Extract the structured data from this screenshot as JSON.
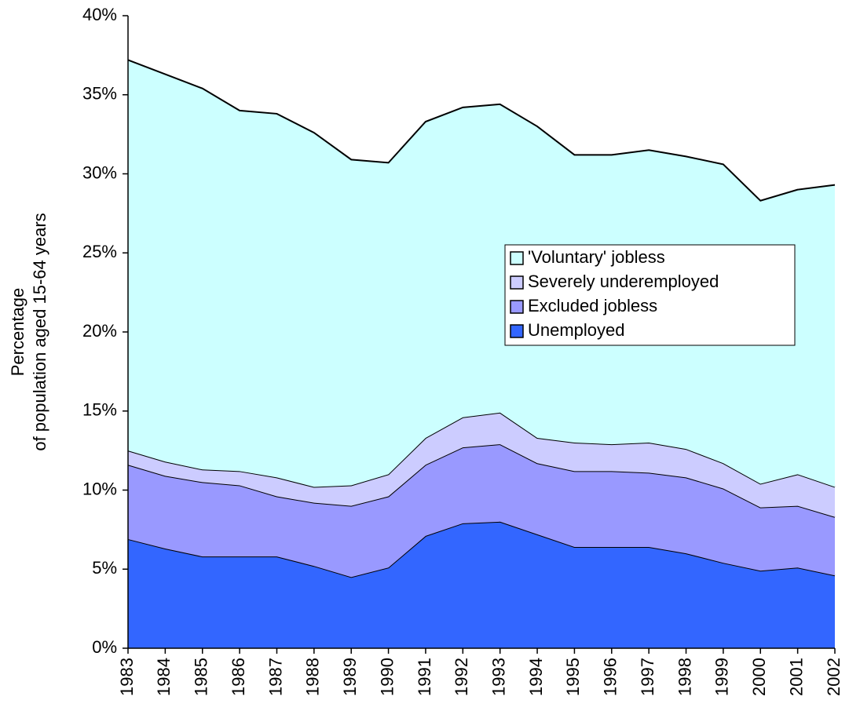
{
  "chart_data": {
    "type": "stacked_area",
    "ylabel": [
      "Percentage",
      "of population aged 15-64 years"
    ],
    "categories": [
      "1983",
      "1984",
      "1985",
      "1986",
      "1987",
      "1988",
      "1989",
      "1990",
      "1991",
      "1992",
      "1993",
      "1994",
      "1995",
      "1996",
      "1997",
      "1998",
      "1999",
      "2000",
      "2001",
      "2002"
    ],
    "series": [
      {
        "name": "Unemployed",
        "color": "#3366ff",
        "values": [
          6.9,
          6.3,
          5.8,
          5.8,
          5.8,
          5.2,
          4.5,
          5.1,
          7.1,
          7.9,
          8.0,
          7.2,
          6.4,
          6.4,
          6.4,
          6.0,
          5.4,
          4.9,
          5.1,
          4.6
        ]
      },
      {
        "name": "Excluded jobless",
        "color": "#9999ff",
        "values": [
          4.7,
          4.6,
          4.7,
          4.5,
          3.8,
          4.0,
          4.5,
          4.5,
          4.5,
          4.8,
          4.9,
          4.5,
          4.8,
          4.8,
          4.7,
          4.8,
          4.7,
          4.0,
          3.9,
          3.7
        ]
      },
      {
        "name": "Severely underemployed",
        "color": "#ccccff",
        "values": [
          0.9,
          0.9,
          0.8,
          0.9,
          1.2,
          1.0,
          1.3,
          1.4,
          1.7,
          1.9,
          2.0,
          1.6,
          1.8,
          1.7,
          1.9,
          1.8,
          1.6,
          1.5,
          2.0,
          1.9
        ]
      },
      {
        "name": "'Voluntary' jobless",
        "color": "#ccffff",
        "values": [
          24.7,
          24.5,
          24.1,
          22.8,
          23.0,
          22.4,
          20.6,
          19.7,
          20.0,
          19.6,
          19.5,
          19.7,
          18.2,
          18.3,
          18.5,
          18.5,
          18.9,
          17.9,
          18.0,
          19.1
        ]
      }
    ],
    "ylim": [
      0,
      40
    ],
    "yticks": [
      {
        "value": 0,
        "label": "0%"
      },
      {
        "value": 5,
        "label": "5%"
      },
      {
        "value": 10,
        "label": "10%"
      },
      {
        "value": 15,
        "label": "15%"
      },
      {
        "value": 20,
        "label": "20%"
      },
      {
        "value": 25,
        "label": "25%"
      },
      {
        "value": 30,
        "label": "30%"
      },
      {
        "value": 35,
        "label": "35%"
      },
      {
        "value": 40,
        "label": "40%"
      }
    ],
    "grid": false,
    "legend": "right"
  }
}
